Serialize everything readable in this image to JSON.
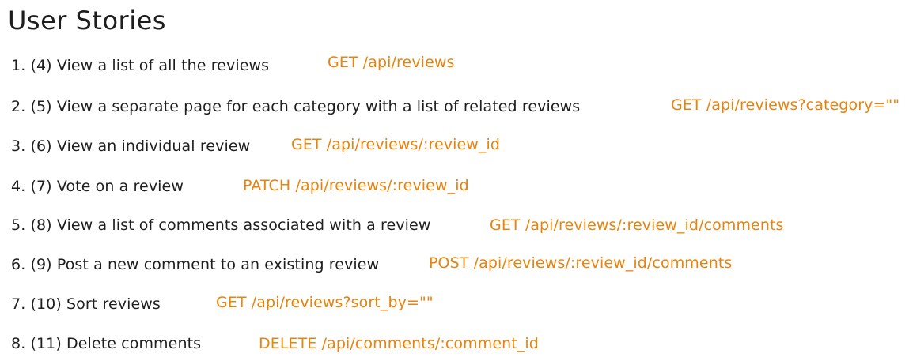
{
  "title": "User Stories",
  "colors": {
    "text": "#1e1e1e",
    "endpoint": "#e8830c",
    "background": "#ffffff"
  },
  "stories": [
    {
      "text": "1. (4) View a list of all the reviews",
      "endpoint": "GET /api/reviews"
    },
    {
      "text": "2. (5) View a separate page for each category with a list of related reviews",
      "endpoint": "GET /api/reviews?category=\"\""
    },
    {
      "text": "3. (6) View an individual review",
      "endpoint": "GET /api/reviews/:review_id"
    },
    {
      "text": "4. (7) Vote on a review",
      "endpoint": "PATCH /api/reviews/:review_id"
    },
    {
      "text": "5. (8) View a list of comments associated with a review",
      "endpoint": "GET /api/reviews/:review_id/comments"
    },
    {
      "text": "6. (9) Post a new comment to an existing review",
      "endpoint": "POST /api/reviews/:review_id/comments"
    },
    {
      "text": "7. (10) Sort reviews",
      "endpoint": "GET /api/reviews?sort_by=\"\""
    },
    {
      "text": "8. (11) Delete comments",
      "endpoint": "DELETE /api/comments/:comment_id"
    }
  ]
}
